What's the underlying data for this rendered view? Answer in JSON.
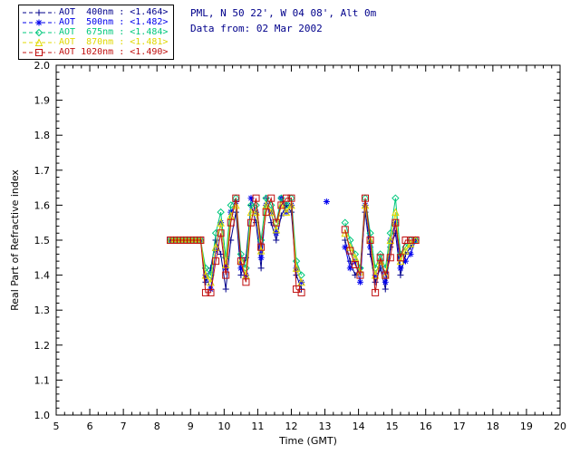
{
  "header": {
    "station_info": "PML, N 50 22', W 04 08', Alt 0m",
    "data_from": "Data from: 02 Mar 2002",
    "text_color": "#00008B"
  },
  "legend": {
    "entries": [
      {
        "label": "AOT  400nm : <1.464>",
        "color": "#00008B",
        "marker": "plus"
      },
      {
        "label": "AOT  500nm : <1.482>",
        "color": "#0000EE",
        "marker": "asterisk"
      },
      {
        "label": "AOT  675nm : <1.484>",
        "color": "#00C87D",
        "marker": "diamond"
      },
      {
        "label": "AOT  870nm : <1.481>",
        "color": "#E0D800",
        "marker": "triangle"
      },
      {
        "label": "AOT 1020nm : <1.490>",
        "color": "#C01010",
        "marker": "square"
      }
    ]
  },
  "chart_data": {
    "type": "line",
    "title": "",
    "xlabel": "Time (GMT)",
    "ylabel": "Real Part of Refractive index",
    "xlim": [
      5,
      20
    ],
    "ylim": [
      1.0,
      2.0
    ],
    "x_major_tick": 1,
    "y_major_tick": 0.1,
    "grid": false,
    "legend_position": "top-left-outside",
    "axis_color": "#000000",
    "x": [
      8.4,
      8.5,
      8.6,
      8.7,
      8.8,
      8.9,
      9.0,
      9.1,
      9.2,
      9.3,
      9.45,
      9.6,
      9.75,
      9.9,
      10.05,
      10.2,
      10.35,
      10.5,
      10.65,
      10.8,
      10.95,
      11.1,
      11.25,
      11.4,
      11.55,
      11.7,
      11.85,
      12.0,
      12.15,
      12.3,
      13.05,
      13.6,
      13.75,
      13.9,
      14.05,
      14.2,
      14.35,
      14.5,
      14.65,
      14.8,
      14.95,
      15.1,
      15.25,
      15.4,
      15.55,
      15.7
    ],
    "gap_threshold": 0.5,
    "series": [
      {
        "name": "AOT 400nm",
        "retrieved_value": "1.464",
        "color": "#00008B",
        "marker": "plus",
        "values": [
          1.5,
          1.5,
          1.5,
          1.5,
          1.5,
          1.5,
          1.5,
          1.5,
          1.5,
          1.5,
          1.38,
          1.42,
          1.5,
          1.46,
          1.36,
          1.5,
          1.58,
          1.4,
          1.45,
          1.6,
          1.55,
          1.42,
          1.62,
          1.55,
          1.5,
          1.57,
          1.6,
          1.58,
          1.4,
          1.36,
          null,
          1.5,
          1.44,
          1.4,
          1.42,
          1.58,
          1.46,
          1.38,
          1.42,
          1.36,
          1.48,
          1.52,
          1.4,
          1.46,
          1.48,
          1.5
        ]
      },
      {
        "name": "AOT 500nm",
        "retrieved_value": "1.482",
        "color": "#0000EE",
        "marker": "asterisk",
        "values": [
          1.5,
          1.5,
          1.5,
          1.5,
          1.5,
          1.5,
          1.5,
          1.5,
          1.5,
          1.5,
          1.4,
          1.36,
          1.47,
          1.55,
          1.42,
          1.58,
          1.61,
          1.42,
          1.4,
          1.62,
          1.58,
          1.45,
          1.6,
          1.58,
          1.52,
          1.62,
          1.58,
          1.6,
          1.42,
          1.38,
          1.61,
          1.48,
          1.42,
          1.44,
          1.38,
          1.6,
          1.48,
          1.4,
          1.44,
          1.38,
          1.5,
          1.55,
          1.42,
          1.44,
          1.46,
          1.5
        ]
      },
      {
        "name": "AOT 675nm",
        "retrieved_value": "1.484",
        "color": "#00C87D",
        "marker": "diamond",
        "values": [
          1.5,
          1.5,
          1.5,
          1.5,
          1.5,
          1.5,
          1.5,
          1.5,
          1.5,
          1.5,
          1.42,
          1.4,
          1.52,
          1.58,
          1.45,
          1.6,
          1.62,
          1.46,
          1.42,
          1.6,
          1.6,
          1.5,
          1.62,
          1.6,
          1.55,
          1.62,
          1.6,
          1.62,
          1.44,
          1.4,
          null,
          1.55,
          1.5,
          1.46,
          1.42,
          1.62,
          1.52,
          1.42,
          1.46,
          1.42,
          1.52,
          1.62,
          1.46,
          1.48,
          1.5,
          1.5
        ]
      },
      {
        "name": "AOT 870nm",
        "retrieved_value": "1.481",
        "color": "#E0D800",
        "marker": "triangle",
        "values": [
          1.5,
          1.5,
          1.5,
          1.5,
          1.5,
          1.5,
          1.5,
          1.5,
          1.5,
          1.5,
          1.4,
          1.38,
          1.48,
          1.55,
          1.43,
          1.57,
          1.6,
          1.44,
          1.4,
          1.58,
          1.58,
          1.47,
          1.6,
          1.58,
          1.53,
          1.6,
          1.58,
          1.6,
          1.42,
          1.38,
          null,
          1.52,
          1.48,
          1.45,
          1.41,
          1.6,
          1.5,
          1.4,
          1.44,
          1.4,
          1.5,
          1.58,
          1.44,
          1.47,
          1.49,
          1.5
        ]
      },
      {
        "name": "AOT 1020nm",
        "retrieved_value": "1.490",
        "color": "#C01010",
        "marker": "square",
        "values": [
          1.5,
          1.5,
          1.5,
          1.5,
          1.5,
          1.5,
          1.5,
          1.5,
          1.5,
          1.5,
          1.35,
          1.35,
          1.44,
          1.52,
          1.4,
          1.55,
          1.62,
          1.44,
          1.38,
          1.55,
          1.62,
          1.48,
          1.58,
          1.62,
          1.55,
          1.6,
          1.62,
          1.62,
          1.36,
          1.35,
          null,
          1.53,
          1.47,
          1.43,
          1.4,
          1.62,
          1.5,
          1.35,
          1.45,
          1.4,
          1.45,
          1.55,
          1.45,
          1.5,
          1.5,
          1.5
        ]
      }
    ]
  }
}
